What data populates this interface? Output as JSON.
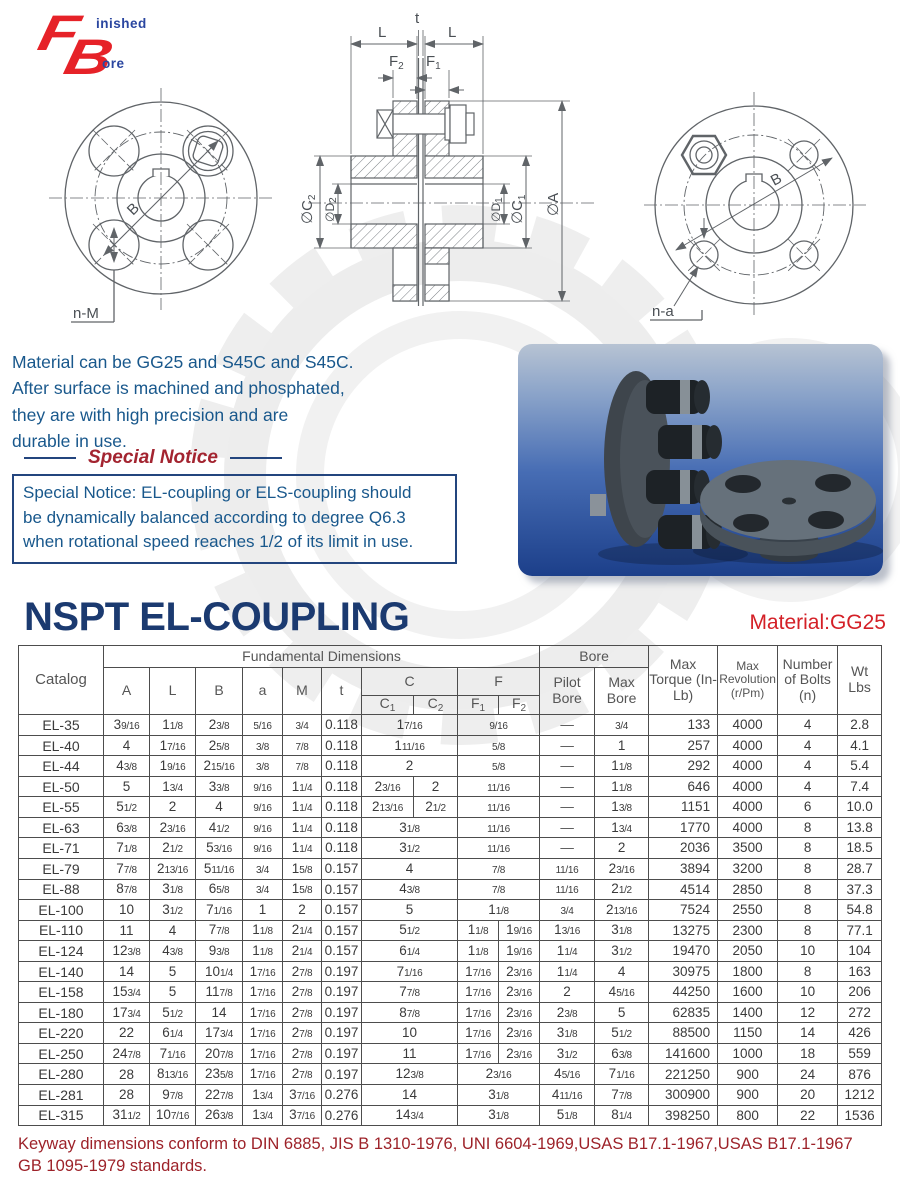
{
  "logo": {
    "f": "F",
    "finished": "inished",
    "b": "B",
    "bore": "ore"
  },
  "drawings": {
    "left_view": {
      "b_label": "B",
      "n_m_label": "n-M"
    },
    "section_view": {
      "t_label": "t",
      "l_left": "L",
      "l_right": "L",
      "f2": {
        "base": "F",
        "sub": "2"
      },
      "f1": {
        "base": "F",
        "sub": "1"
      },
      "c2": {
        "base": "∅C",
        "sub": "2"
      },
      "d2": {
        "base": "∅D",
        "sub": "2"
      },
      "d1": {
        "base": "∅D",
        "sub": "1"
      },
      "c1": {
        "base": "∅C",
        "sub": "1"
      },
      "a_label": "∅A"
    },
    "right_view": {
      "b_label": "B",
      "n_a_label": "n-a"
    }
  },
  "material_lines": [
    "Material can be GG25 and S45C and S45C.",
    "After surface is machined and phosphated,",
    "they are with high precision and are",
    "durable in use."
  ],
  "special_notice": {
    "title": "Special Notice",
    "lines": [
      "Special Notice: EL-coupling or ELS-coupling should",
      "be dynamically balanced according to degree Q6.3",
      "when rotational speed  reaches 1/2 of its limit in use."
    ]
  },
  "section_title": "NSPT EL-COUPLING",
  "material_label": "Material:GG25",
  "table": {
    "headers": {
      "catalog": "Catalog",
      "fundamental": "Fundamental Dimensions",
      "a": "A",
      "l": "L",
      "b": "B",
      "a_small": "a",
      "m": "M",
      "t": "t",
      "c_group": "C",
      "f_group": "F",
      "c1": {
        "base": "C",
        "sub": "1"
      },
      "c2": {
        "base": "C",
        "sub": "2"
      },
      "f1": {
        "base": "F",
        "sub": "1"
      },
      "f2": {
        "base": "F",
        "sub": "2"
      },
      "bore_group": "Bore",
      "pilot_bore": "Pilot Bore",
      "max_bore": "Max Bore",
      "max_torque": "Max Torque (In-Lb)",
      "max_revolution": "Max Revolution (r/Pm)",
      "number_of_bolts": "Number of Bolts (n)",
      "wt": "Wt Lbs"
    },
    "rows": [
      [
        "EL-35",
        "3 9/16",
        "1 1/8",
        "2 3/8",
        "5/16",
        "3/4",
        "0.118",
        [
          "1 7/16"
        ],
        [
          "9/16"
        ],
        "—",
        "3/4",
        "133",
        "4000",
        "4",
        "2.8"
      ],
      [
        "EL-40",
        "4",
        "1 7/16",
        "2 5/8",
        "3/8",
        "7/8",
        "0.118",
        [
          "1 11/16"
        ],
        [
          "5/8"
        ],
        "—",
        "1",
        "257",
        "4000",
        "4",
        "4.1"
      ],
      [
        "EL-44",
        "4 3/8",
        "1 9/16",
        "2 15/16",
        "3/8",
        "7/8",
        "0.118",
        [
          "2"
        ],
        [
          "5/8"
        ],
        "—",
        "1 1/8",
        "292",
        "4000",
        "4",
        "5.4"
      ],
      [
        "EL-50",
        "5",
        "1 3/4",
        "3 3/8",
        "9/16",
        "1 1/4",
        "0.118",
        [
          "2 3/16",
          "2"
        ],
        [
          "11/16"
        ],
        "—",
        "1 1/8",
        "646",
        "4000",
        "4",
        "7.4"
      ],
      [
        "EL-55",
        "5 1/2",
        "2",
        "4",
        "9/16",
        "1 1/4",
        "0.118",
        [
          "2 13/16",
          "2 1/2"
        ],
        [
          "11/16"
        ],
        "—",
        "1 3/8",
        "1151",
        "4000",
        "6",
        "10.0"
      ],
      [
        "EL-63",
        "6 3/8",
        "2 3/16",
        "4 1/2",
        "9/16",
        "1 1/4",
        "0.118",
        [
          "3 1/8"
        ],
        [
          "11/16"
        ],
        "—",
        "1 3/4",
        "1770",
        "4000",
        "8",
        "13.8"
      ],
      [
        "EL-71",
        "7 1/8",
        "2 1/2",
        "5 3/16",
        "9/16",
        "1 1/4",
        "0.118",
        [
          "3 1/2"
        ],
        [
          "11/16"
        ],
        "—",
        "2",
        "2036",
        "3500",
        "8",
        "18.5"
      ],
      [
        "EL-79",
        "7 7/8",
        "2 13/16",
        "5 11/16",
        "3/4",
        "1 5/8",
        "0.157",
        [
          "4"
        ],
        [
          "7/8"
        ],
        "11/16",
        "2 3/16",
        "3894",
        "3200",
        "8",
        "28.7"
      ],
      [
        "EL-88",
        "8 7/8",
        "3 1/8",
        "6 5/8",
        "3/4",
        "1 5/8",
        "0.157",
        [
          "4 3/8"
        ],
        [
          "7/8"
        ],
        "11/16",
        "2 1/2",
        "4514",
        "2850",
        "8",
        "37.3"
      ],
      [
        "EL-100",
        "10",
        "3 1/2",
        "7 1/16",
        "1",
        "2",
        "0.157",
        [
          "5"
        ],
        [
          "1 1/8"
        ],
        "3/4",
        "2 13/16",
        "7524",
        "2550",
        "8",
        "54.8"
      ],
      [
        "EL-110",
        "11",
        "4",
        "7 7/8",
        "1 1/8",
        "2 1/4",
        "0.157",
        [
          "5 1/2"
        ],
        [
          "1 1/8",
          "1 9/16"
        ],
        "1 3/16",
        "3 1/8",
        "13275",
        "2300",
        "8",
        "77.1"
      ],
      [
        "EL-124",
        "12 3/8",
        "4 3/8",
        "9 3/8",
        "1 1/8",
        "2 1/4",
        "0.157",
        [
          "6 1/4"
        ],
        [
          "1 1/8",
          "1 9/16"
        ],
        "1 1/4",
        "3 1/2",
        "19470",
        "2050",
        "10",
        "104"
      ],
      [
        "EL-140",
        "14",
        "5",
        "10 1/4",
        "1 7/16",
        "2 7/8",
        "0.197",
        [
          "7 1/16"
        ],
        [
          "1 7/16",
          "2 3/16"
        ],
        "1 1/4",
        "4",
        "30975",
        "1800",
        "8",
        "163"
      ],
      [
        "EL-158",
        "15 3/4",
        "5",
        "11 7/8",
        "1 7/16",
        "2 7/8",
        "0.197",
        [
          "7 7/8"
        ],
        [
          "1 7/16",
          "2 3/16"
        ],
        "2",
        "4 5/16",
        "44250",
        "1600",
        "10",
        "206"
      ],
      [
        "EL-180",
        "17 3/4",
        "5 1/2",
        "14",
        "1 7/16",
        "2 7/8",
        "0.197",
        [
          "8 7/8"
        ],
        [
          "1 7/16",
          "2 3/16"
        ],
        "2 3/8",
        "5",
        "62835",
        "1400",
        "12",
        "272"
      ],
      [
        "EL-220",
        "22",
        "6 1/4",
        "17 3/4",
        "1 7/16",
        "2 7/8",
        "0.197",
        [
          "10"
        ],
        [
          "1 7/16",
          "2 3/16"
        ],
        "3 1/8",
        "5 1/2",
        "88500",
        "1150",
        "14",
        "426"
      ],
      [
        "EL-250",
        "24 7/8",
        "7 1/16",
        "20 7/8",
        "1 7/16",
        "2 7/8",
        "0.197",
        [
          "11"
        ],
        [
          "1 7/16",
          "2 3/16"
        ],
        "3 1/2",
        "6 3/8",
        "141600",
        "1000",
        "18",
        "559"
      ],
      [
        "EL-280",
        "28",
        "8 13/16",
        "23 5/8",
        "1 7/16",
        "2 7/8",
        "0.197",
        [
          "12 3/8"
        ],
        [
          "2 3/16"
        ],
        "4 5/16",
        "7 1/16",
        "221250",
        "900",
        "24",
        "876"
      ],
      [
        "EL-281",
        "28",
        "9 7/8",
        "22 7/8",
        "1 3/4",
        "3 7/16",
        "0.276",
        [
          "14"
        ],
        [
          "3 1/8"
        ],
        "4 11/16",
        "7 7/8",
        "300900",
        "900",
        "20",
        "1212"
      ],
      [
        "EL-315",
        "31 1/2",
        "10 7/16",
        "26 3/8",
        "1 3/4",
        "3 7/16",
        "0.276",
        [
          "14 3/4"
        ],
        [
          "3 1/8"
        ],
        "5 1/8",
        "8 1/4",
        "398250",
        "800",
        "22",
        "1536"
      ]
    ]
  },
  "footer_lines": [
    "Keyway dimensions conform to DIN 6885, JIS B 1310-1976, UNI 6604-1969,USAS B17.1-1967,USAS B17.1-1967",
    "GB 1095-1979 standards."
  ],
  "colors": {
    "logo_red": "#e62228",
    "logo_blue": "#2a46a0",
    "body_blue": "#19588c",
    "notice_red": "#a32430",
    "title_navy": "#1b3a70",
    "material_red": "#d42027",
    "footer_red": "#9d2229",
    "table_line": "#4d4d4d",
    "drawing_line": "#606468",
    "photo_bg_top": "#b7c3d3",
    "photo_bg_bottom": "#1c3f8a"
  }
}
